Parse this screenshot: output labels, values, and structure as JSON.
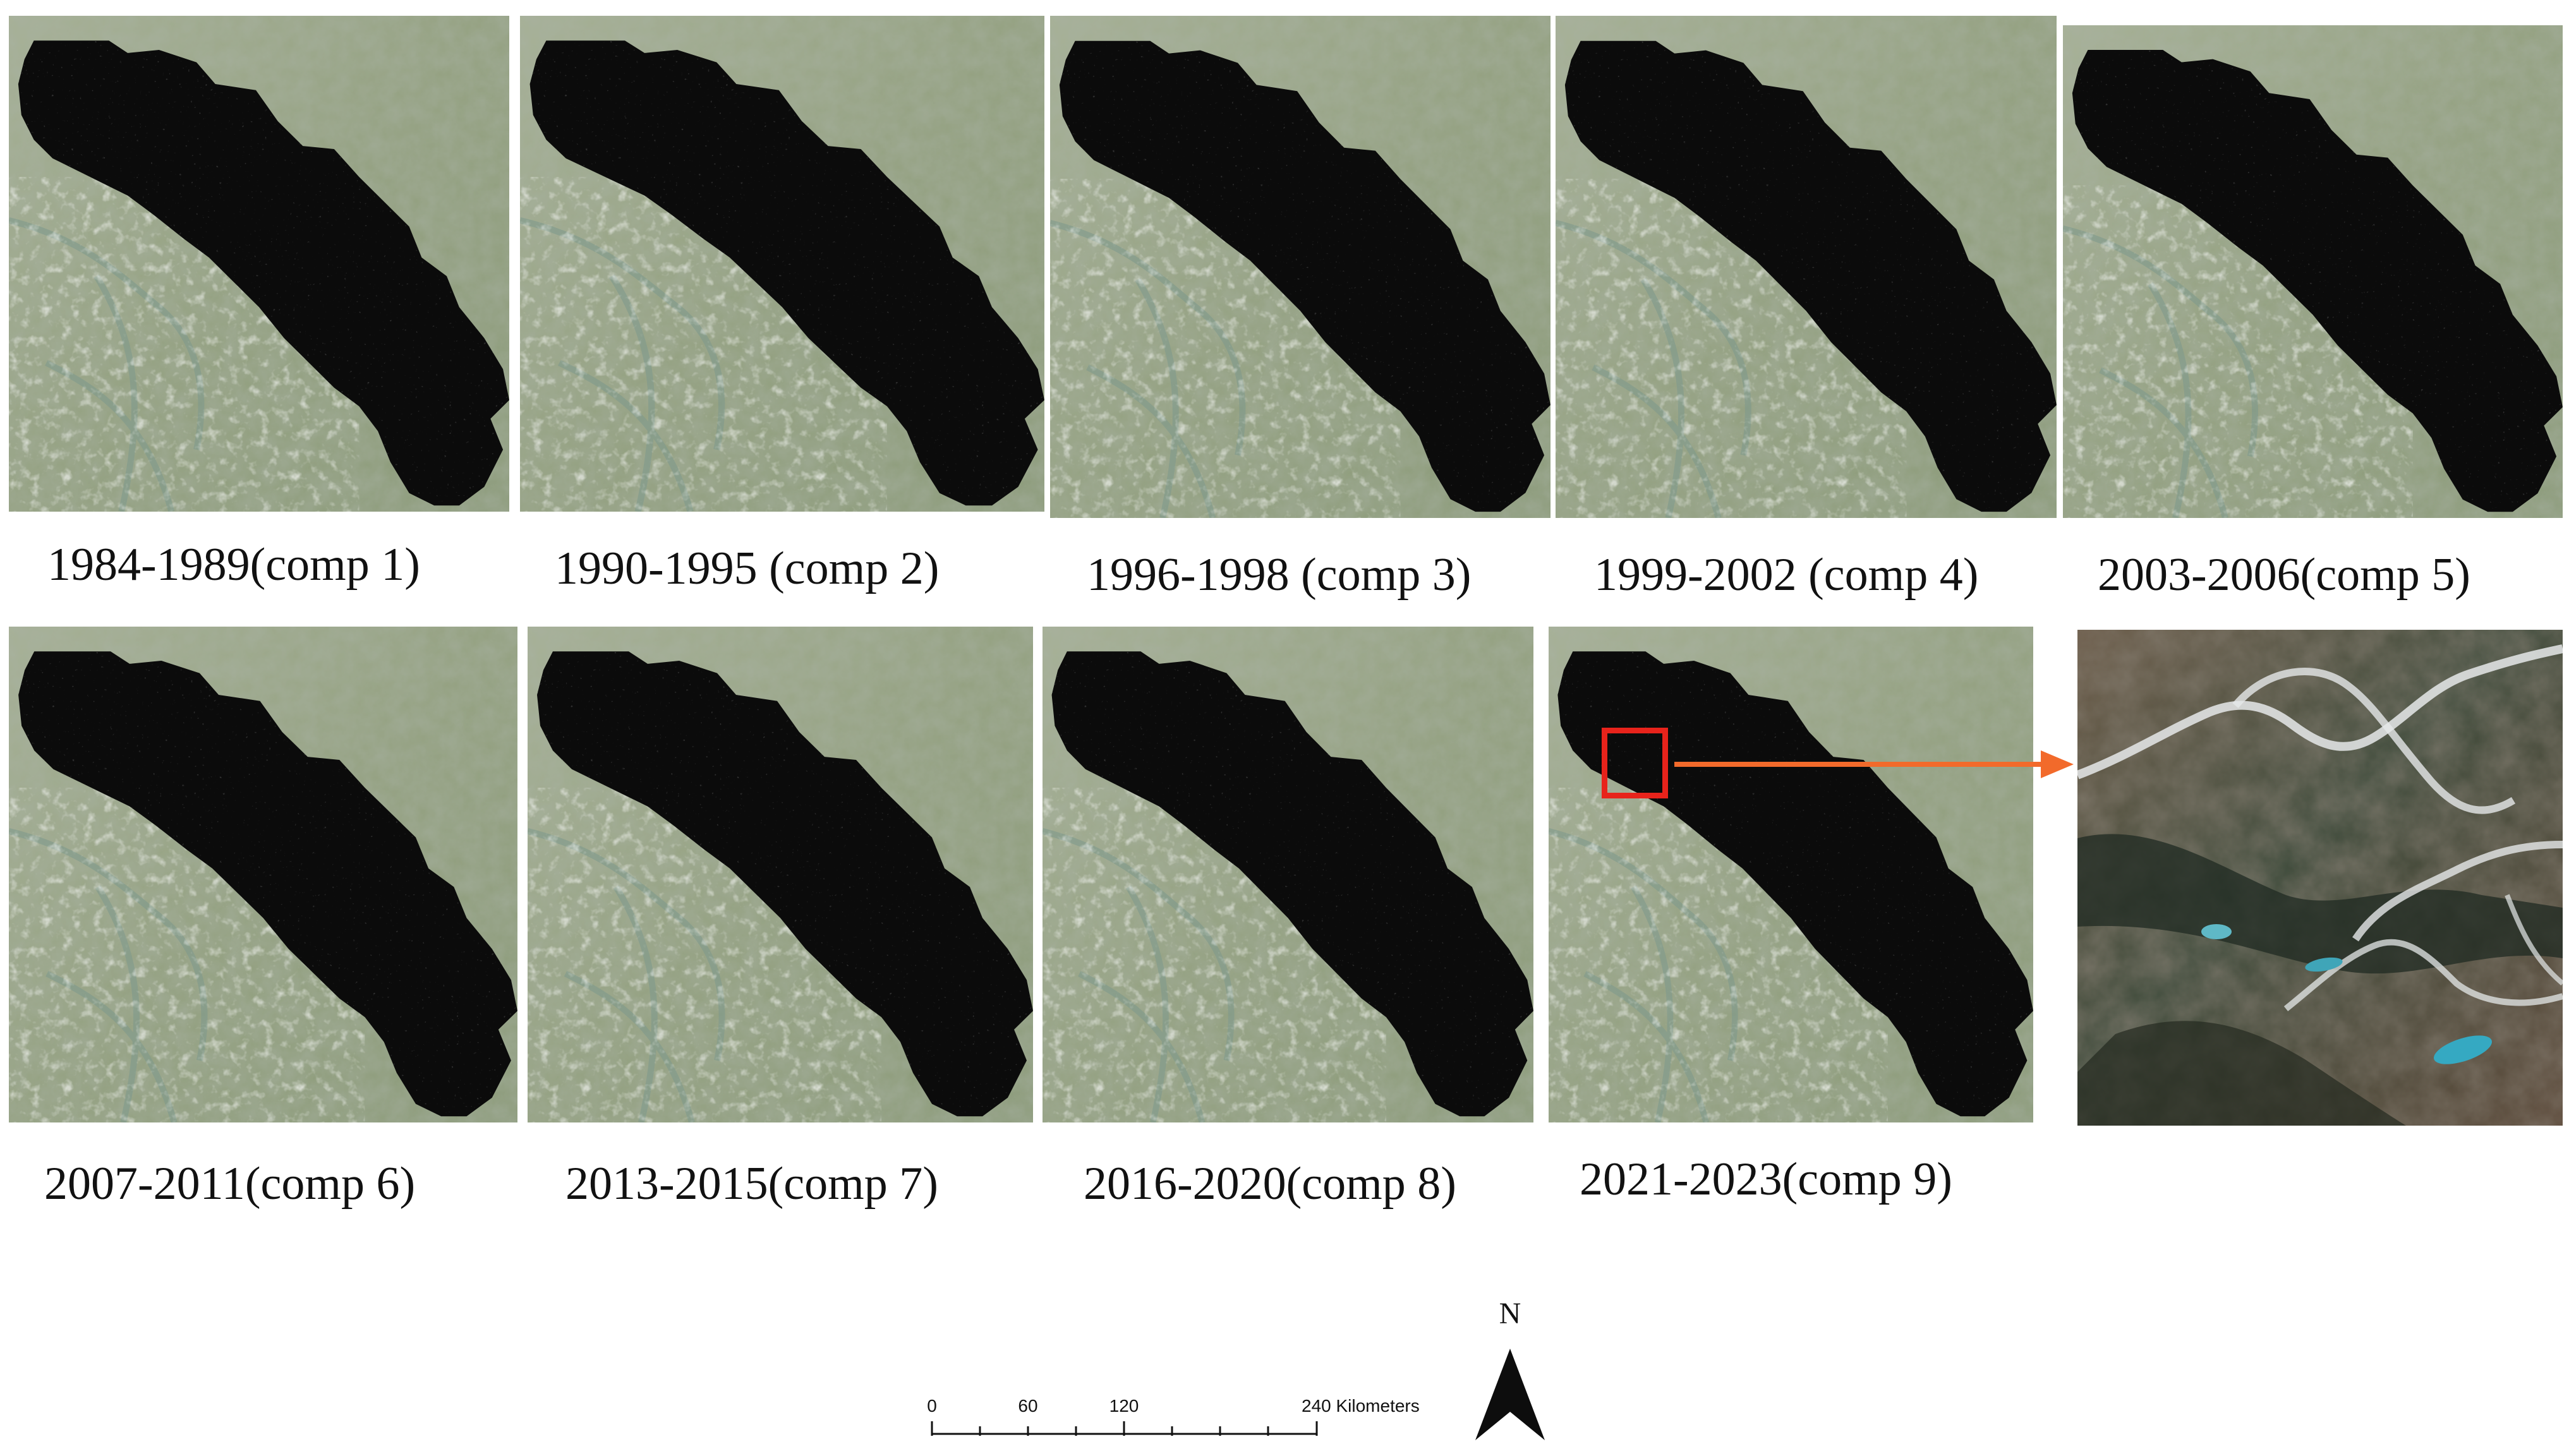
{
  "panels": [
    {
      "caption": "1984-1989(comp 1)"
    },
    {
      "caption": "1990-1995 (comp 2)"
    },
    {
      "caption": "1996-1998 (comp 3)"
    },
    {
      "caption": "1999-2002 (comp 4)"
    },
    {
      "caption": "2003-2006(comp 5)"
    },
    {
      "caption": "2007-2011(comp 6)"
    },
    {
      "caption": "2013-2015(comp 7)"
    },
    {
      "caption": "2016-2020(comp 8)"
    },
    {
      "caption": "2021-2023(comp 9)"
    }
  ],
  "zoom_inset": {
    "box_color": "#e8231b",
    "arrow_color": "#f26a2b"
  },
  "scale_bar": {
    "ticks": [
      "0",
      "60",
      "120",
      "240 Kilometers"
    ]
  },
  "north_arrow": {
    "label": "N"
  },
  "colors": {
    "terrain": "#8fa27e",
    "mask": "#0b0b0b",
    "snow": "#e6e9ea"
  }
}
